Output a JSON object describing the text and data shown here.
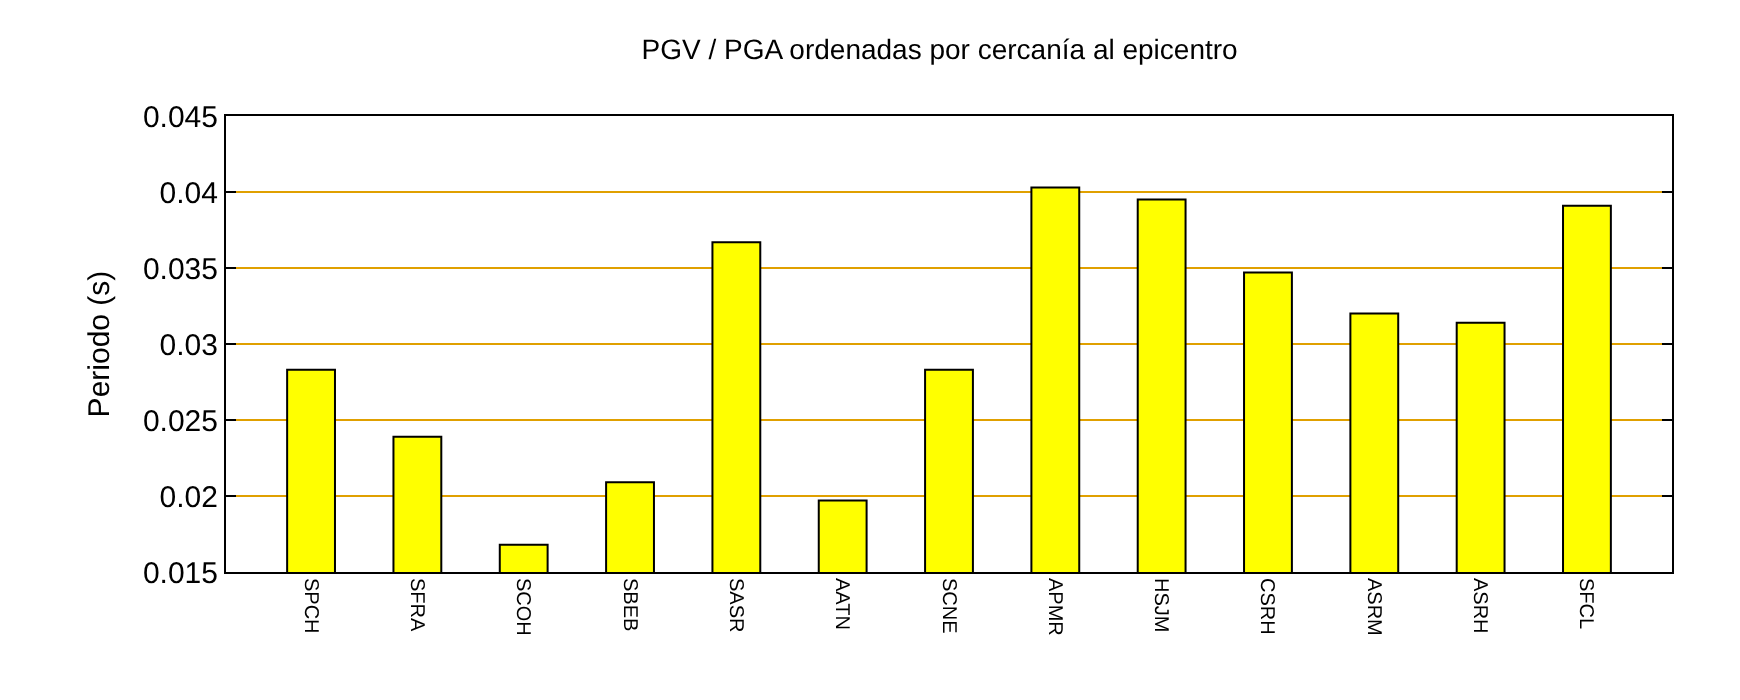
{
  "chart_data": {
    "type": "bar",
    "title": "PGV / PGA ordenadas por cercanía al epicentro",
    "ylabel": "Periodo (s)",
    "categories": [
      "SPCH",
      "SFRA",
      "SCOH",
      "SBEB",
      "SASR",
      "AATN",
      "SCNE",
      "APMR",
      "HSJM",
      "CSRH",
      "ASRM",
      "ASRH",
      "SFCL"
    ],
    "values": [
      0.0283,
      0.0239,
      0.0168,
      0.0209,
      0.0367,
      0.0197,
      0.0283,
      0.0403,
      0.0395,
      0.0347,
      0.032,
      0.0314,
      0.0391
    ],
    "color": "#ffff00",
    "ylim": [
      0.015,
      0.045
    ],
    "yticks": [
      0.015,
      0.02,
      0.025,
      0.03,
      0.035,
      0.04,
      0.045
    ],
    "grid": "y",
    "legend": false
  }
}
